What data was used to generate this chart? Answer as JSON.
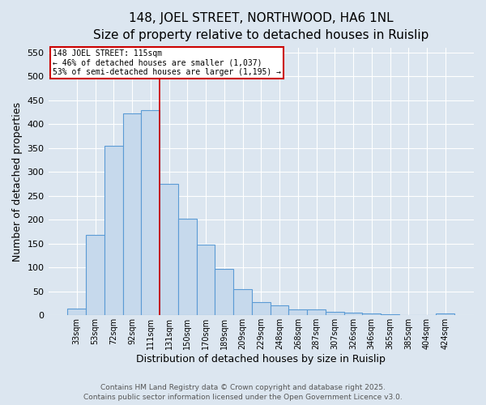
{
  "title1": "148, JOEL STREET, NORTHWOOD, HA6 1NL",
  "title2": "Size of property relative to detached houses in Ruislip",
  "xlabel": "Distribution of detached houses by size in Ruislip",
  "ylabel": "Number of detached properties",
  "categories": [
    "33sqm",
    "53sqm",
    "72sqm",
    "92sqm",
    "111sqm",
    "131sqm",
    "150sqm",
    "170sqm",
    "189sqm",
    "209sqm",
    "229sqm",
    "248sqm",
    "268sqm",
    "287sqm",
    "307sqm",
    "326sqm",
    "346sqm",
    "365sqm",
    "385sqm",
    "404sqm",
    "424sqm"
  ],
  "values": [
    14,
    168,
    355,
    422,
    430,
    275,
    202,
    148,
    98,
    55,
    27,
    20,
    13,
    13,
    7,
    5,
    4,
    2,
    0,
    1,
    4
  ],
  "bar_color": "#c6d9ec",
  "bar_edge_color": "#5b9bd5",
  "red_line_x": 4.5,
  "annotation_line1": "148 JOEL STREET: 115sqm",
  "annotation_line2": "← 46% of detached houses are smaller (1,037)",
  "annotation_line3": "53% of semi-detached houses are larger (1,195) →",
  "annotation_box_color": "#ffffff",
  "annotation_box_edge": "#cc0000",
  "footer1": "Contains HM Land Registry data © Crown copyright and database right 2025.",
  "footer2": "Contains public sector information licensed under the Open Government Licence v3.0.",
  "bg_color": "#dce6f0",
  "plot_bg_color": "#dce6f0",
  "ylim": [
    0,
    560
  ],
  "yticks": [
    0,
    50,
    100,
    150,
    200,
    250,
    300,
    350,
    400,
    450,
    500,
    550
  ],
  "title_fontsize": 11,
  "subtitle_fontsize": 10,
  "axis_label_fontsize": 9,
  "tick_fontsize": 8,
  "footer_fontsize": 6.5
}
